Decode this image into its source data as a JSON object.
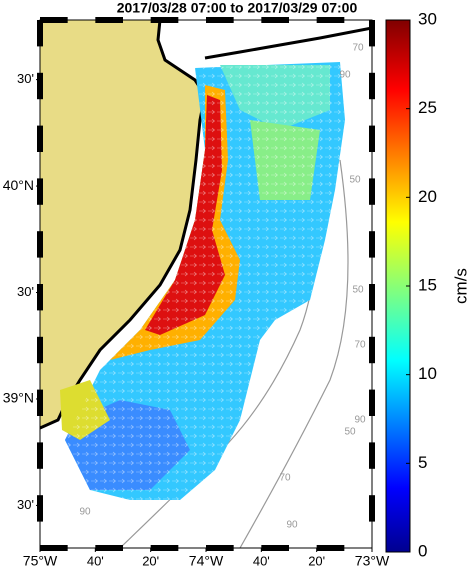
{
  "map": {
    "title": "2017/03/28 07:00 to 2017/03/29 07:00",
    "lonlim": [
      -75,
      -73
    ],
    "latlim": [
      38.3,
      40.78
    ],
    "lon_ticks": [
      {
        "value": -75,
        "label": "75°W"
      },
      {
        "value": -74.6667,
        "label": "40'"
      },
      {
        "value": -74.3333,
        "label": "20'"
      },
      {
        "value": -74,
        "label": "74°W"
      },
      {
        "value": -73.6667,
        "label": "40'"
      },
      {
        "value": -73.3333,
        "label": "20'"
      },
      {
        "value": -73,
        "label": "73°W"
      }
    ],
    "lat_ticks": [
      {
        "value": 38.5,
        "label": "30'"
      },
      {
        "value": 39,
        "label": "39°N"
      },
      {
        "value": 39.5,
        "label": "30'"
      },
      {
        "value": 40,
        "label": "40°N"
      },
      {
        "value": 40.5,
        "label": "30'"
      }
    ],
    "contour_labels": [
      "70",
      "90",
      "50",
      "50",
      "70",
      "50",
      "90",
      "70",
      "90",
      "90"
    ],
    "colorbar": {
      "label": "cm/s",
      "range": [
        0,
        30
      ],
      "ticks": [
        0,
        5,
        10,
        15,
        20,
        25,
        30
      ]
    }
  }
}
